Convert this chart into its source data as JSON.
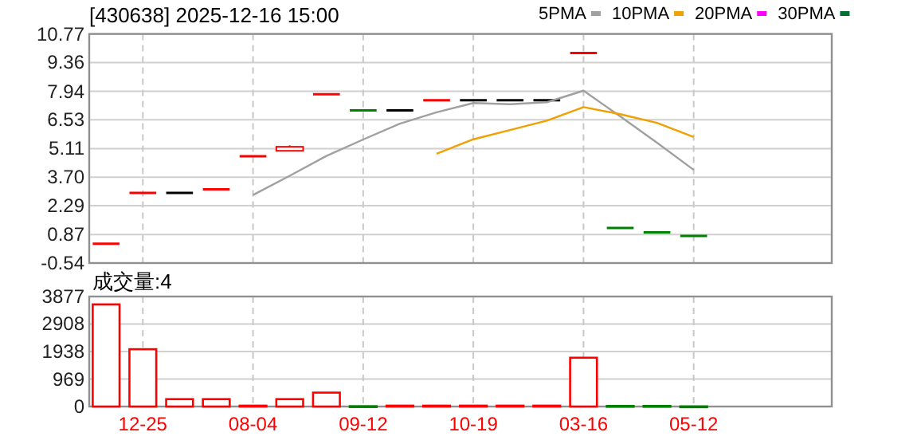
{
  "chart_data": [
    {
      "type": "candlestick",
      "title": "[430638]  2025-12-16  15:00",
      "categories": [
        null,
        null,
        null,
        null,
        null,
        null,
        null,
        null,
        null,
        null,
        null,
        null,
        null,
        null,
        null,
        null,
        null
      ],
      "ohlc": [
        [
          0.41,
          0.41,
          0.41,
          0.41
        ],
        [
          2.92,
          2.92,
          2.92,
          2.92
        ],
        [
          2.92,
          2.92,
          2.92,
          2.92
        ],
        [
          3.1,
          3.1,
          3.1,
          3.1
        ],
        [
          4.73,
          4.73,
          4.73,
          4.73
        ],
        [
          5.0,
          5.27,
          5.0,
          5.2
        ],
        [
          7.79,
          7.79,
          7.79,
          7.79
        ],
        [
          7.0,
          7.0,
          7.0,
          7.0
        ],
        [
          7.0,
          7.0,
          7.0,
          7.0
        ],
        [
          7.5,
          7.5,
          7.5,
          7.5
        ],
        [
          7.5,
          7.5,
          7.5,
          7.5
        ],
        [
          7.5,
          7.5,
          7.5,
          7.5
        ],
        [
          7.5,
          7.5,
          7.5,
          7.5
        ],
        [
          9.83,
          9.83,
          9.83,
          9.83
        ],
        [
          1.19,
          1.19,
          1.19,
          1.19
        ],
        [
          0.98,
          0.98,
          0.98,
          0.98
        ],
        [
          0.8,
          0.8,
          0.8,
          0.8
        ]
      ],
      "colors": [
        "#ff0000",
        "#ff0000",
        "#000000",
        "#ff0000",
        "#ff0000",
        "#ff0000",
        "#ff0000",
        "#008000",
        "#000000",
        "#ff0000",
        "#000000",
        "#000000",
        "#000000",
        "#ff0000",
        "#008000",
        "#008000",
        "#008000"
      ],
      "series": [
        {
          "name": "5PMA",
          "type": "line",
          "color": "#a0a0a0",
          "values": [
            null,
            null,
            null,
            null,
            2.82,
            3.77,
            4.75,
            5.56,
            6.34,
            6.9,
            7.36,
            7.3,
            7.4,
            7.97,
            6.7,
            5.4,
            4.06
          ]
        },
        {
          "name": "10PMA",
          "type": "line",
          "color": "#f0a000",
          "values": [
            null,
            null,
            null,
            null,
            null,
            null,
            null,
            null,
            null,
            4.86,
            5.57,
            6.03,
            6.49,
            7.16,
            6.81,
            6.38,
            5.68
          ]
        },
        {
          "name": "20PMA",
          "type": "line",
          "color": "#ff00ff",
          "values": [
            null,
            null,
            null,
            null,
            null,
            null,
            null,
            null,
            null,
            null,
            null,
            null,
            null,
            null,
            null,
            null,
            null
          ]
        },
        {
          "name": "30PMA",
          "type": "line",
          "color": "#007030",
          "values": [
            null,
            null,
            null,
            null,
            null,
            null,
            null,
            null,
            null,
            null,
            null,
            null,
            null,
            null,
            null,
            null,
            null
          ]
        }
      ],
      "ylim": [
        -0.54,
        10.77
      ],
      "yticks": [
        -0.54,
        0.87,
        2.29,
        {
          "value": 3.7,
          "label": "3.70"
        },
        5.11,
        6.53,
        7.94,
        9.36,
        10.77
      ],
      "grid": true,
      "legend": "top right",
      "tick_labels": "y"
    },
    {
      "type": "bar",
      "title": "成交量:4",
      "categories": [
        null,
        "12-25",
        null,
        null,
        "08-04",
        null,
        null,
        "09-12",
        null,
        null,
        "10-19",
        null,
        null,
        "03-16",
        null,
        null,
        "05-12"
      ],
      "values": [
        3600,
        2020,
        260,
        260,
        30,
        260,
        490,
        10,
        30,
        30,
        30,
        30,
        30,
        1720,
        20,
        20,
        4
      ],
      "colors": [
        "#ff0000",
        "#ff0000",
        "#ff0000",
        "#ff0000",
        "#ff0000",
        "#ff0000",
        "#ff0000",
        "#008000",
        "#ff0000",
        "#ff0000",
        "#ff0000",
        "#ff0000",
        "#ff0000",
        "#ff0000",
        "#008000",
        "#008000",
        "#008000"
      ],
      "ylim": [
        0,
        3877
      ],
      "yticks": [
        0,
        969,
        1938,
        2908,
        3877
      ],
      "grid": true
    }
  ]
}
